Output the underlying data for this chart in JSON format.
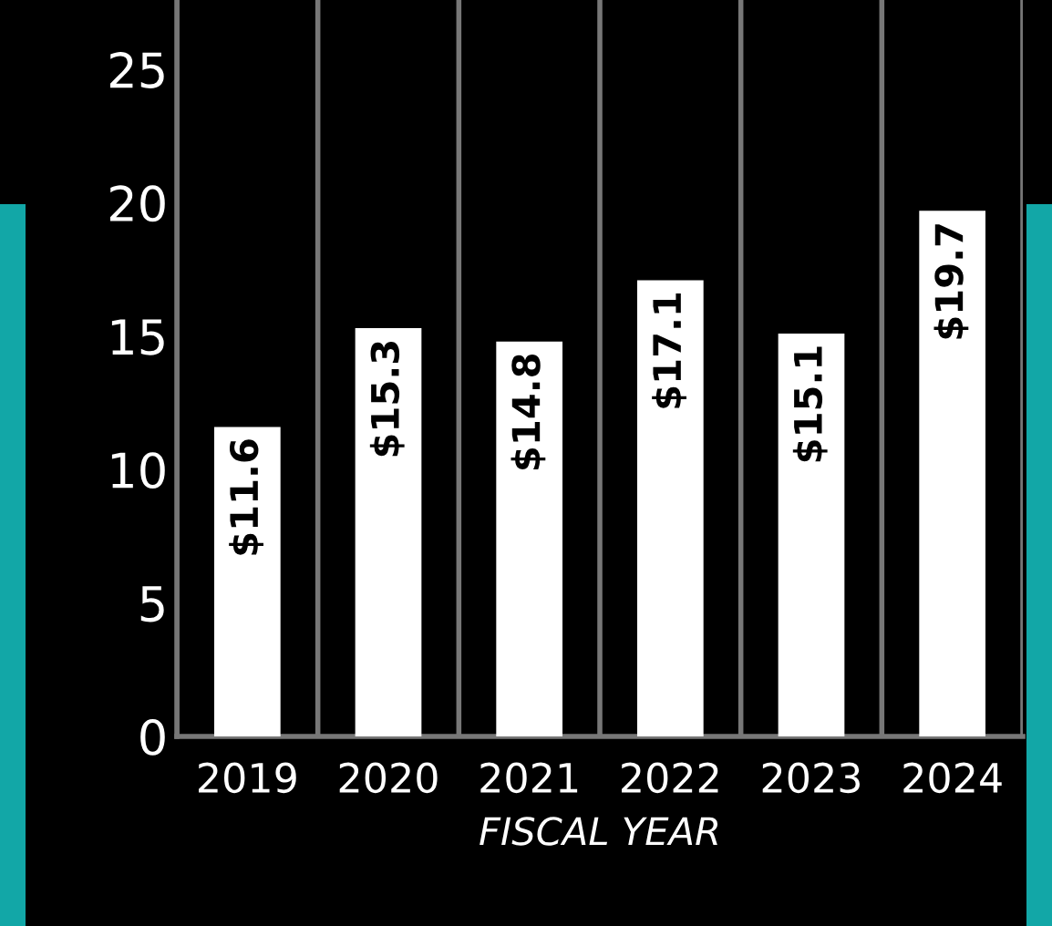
{
  "chart_data": {
    "type": "bar",
    "xlabel": "FISCAL YEAR",
    "categories": [
      "2019",
      "2020",
      "2021",
      "2022",
      "2023",
      "2024"
    ],
    "values": [
      11.6,
      15.3,
      14.8,
      17.1,
      15.1,
      19.7
    ],
    "color": "#ffffff",
    "value_labels": [
      "$11.6",
      "$15.3",
      "$14.8",
      "$17.1",
      "$15.1",
      "$19.7"
    ],
    "ylim": [
      0,
      27.6
    ],
    "yticks": [
      0,
      5,
      10,
      15,
      20,
      25
    ],
    "grid": "x"
  }
}
